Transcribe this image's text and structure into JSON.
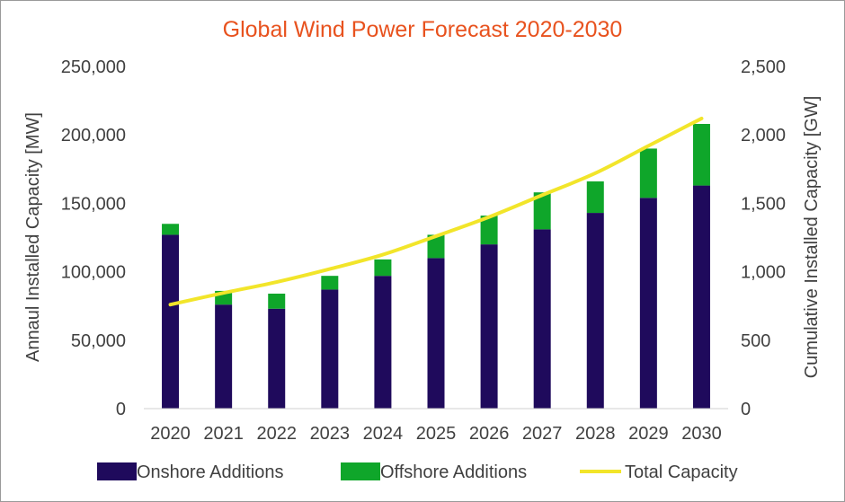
{
  "chart_data": {
    "type": "bar",
    "title": "Global Wind Power Forecast 2020-2030",
    "categories": [
      "2020",
      "2021",
      "2022",
      "2023",
      "2024",
      "2025",
      "2026",
      "2027",
      "2028",
      "2029",
      "2030"
    ],
    "series": [
      {
        "name": "Onshore Additions",
        "type": "stacked-bar",
        "axis": "left",
        "color": "#1F0A5C",
        "values": [
          127000,
          76000,
          73000,
          87000,
          97000,
          110000,
          120000,
          131000,
          143000,
          154000,
          163000
        ]
      },
      {
        "name": "Offshore Additions",
        "type": "stacked-bar",
        "axis": "left",
        "color": "#0FA62A",
        "values": [
          8000,
          10000,
          11000,
          10000,
          12000,
          17000,
          21000,
          27000,
          23000,
          36000,
          45000
        ]
      },
      {
        "name": "Total Capacity",
        "type": "line",
        "axis": "right",
        "color": "#F2E52A",
        "values": [
          760,
          845,
          925,
          1020,
          1125,
          1260,
          1400,
          1560,
          1720,
          1920,
          2120
        ]
      }
    ],
    "ylabel": "Annaul Installed Capacity [MW]",
    "y2label": "Cumulative Installed Capacity [GW]",
    "ylim": [
      0,
      250000
    ],
    "y2lim": [
      0,
      2500
    ],
    "yticks": [
      "0",
      "50,000",
      "100,000",
      "150,000",
      "200,000",
      "250,000"
    ],
    "y2ticks": [
      "0",
      "500",
      "1,000",
      "1,500",
      "2,000",
      "2,500"
    ],
    "ytick_values": [
      0,
      50000,
      100000,
      150000,
      200000,
      250000
    ],
    "y2tick_values": [
      0,
      500,
      1000,
      1500,
      2000,
      2500
    ],
    "grid": false,
    "legend_position": "bottom"
  }
}
